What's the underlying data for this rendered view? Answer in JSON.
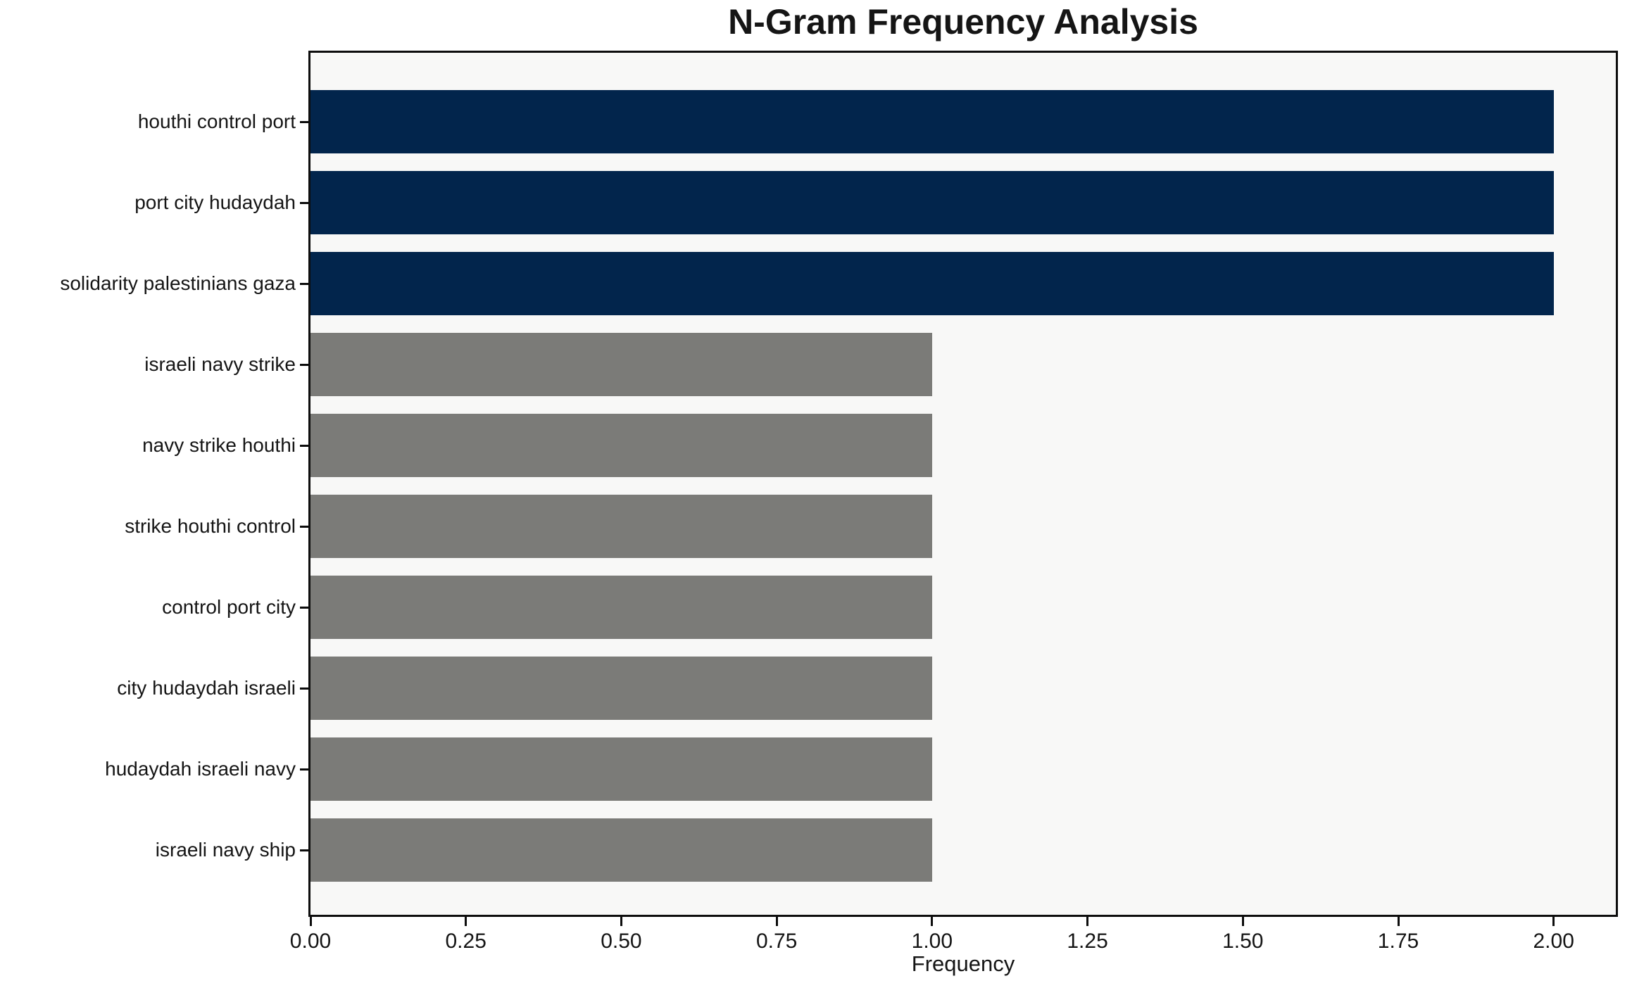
{
  "chart_data": {
    "type": "bar",
    "orientation": "horizontal",
    "title": "N-Gram Frequency Analysis",
    "xlabel": "Frequency",
    "ylabel": "",
    "categories": [
      "houthi control port",
      "port city hudaydah",
      "solidarity palestinians gaza",
      "israeli navy strike",
      "navy strike houthi",
      "strike houthi control",
      "control port city",
      "city hudaydah israeli",
      "hudaydah israeli navy",
      "israeli navy ship"
    ],
    "values": [
      2,
      2,
      2,
      1,
      1,
      1,
      1,
      1,
      1,
      1
    ],
    "bar_colors": [
      "#02254c",
      "#02254c",
      "#02254c",
      "#7b7b78",
      "#7b7b78",
      "#7b7b78",
      "#7b7b78",
      "#7b7b78",
      "#7b7b78",
      "#7b7b78"
    ],
    "xlim": [
      0,
      2.1
    ],
    "xtick_labels": [
      "0.00",
      "0.25",
      "0.50",
      "0.75",
      "1.00",
      "1.25",
      "1.50",
      "1.75",
      "2.00"
    ],
    "xtick_values": [
      0,
      0.25,
      0.5,
      0.75,
      1.0,
      1.25,
      1.5,
      1.75,
      2.0
    ],
    "grid": false,
    "legend": null,
    "colors": {
      "highlight_bar": "#02254c",
      "default_bar": "#7b7b78",
      "plot_background": "#f8f8f7",
      "figure_background": "#ffffff",
      "spine": "#0d0d0d",
      "text": "#151515"
    }
  }
}
